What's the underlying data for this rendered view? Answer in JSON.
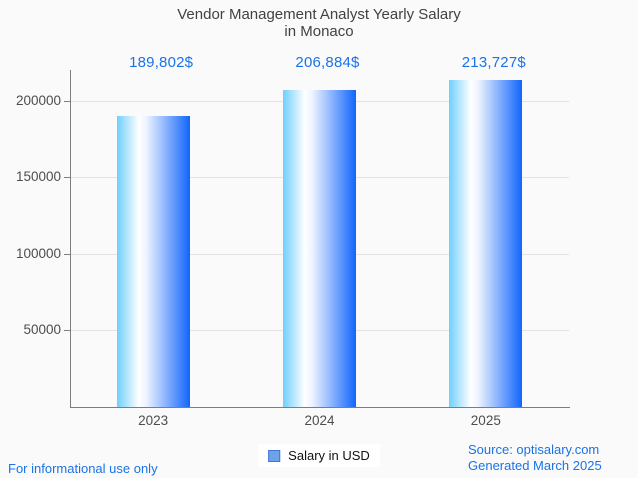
{
  "title": {
    "line1": "Vendor Management Analyst Yearly Salary",
    "line2": "in Monaco"
  },
  "legend": {
    "label": "Salary in USD"
  },
  "footer": {
    "left": "For informational use only",
    "source": "Source: optisalary.com",
    "generated": "Generated March 2025"
  },
  "colors": {
    "accent_blue": "#1a73e8",
    "title_text": "#424242",
    "axis_text": "#4d4d4d",
    "axis_line": "#7d7d7d",
    "gridline": "#e3e3e3",
    "background": "#fafafa",
    "bar_gradient_left": "#70cffe",
    "bar_gradient_right": "#1165fb",
    "legend_marker_fill": "#6fa3e8",
    "legend_marker_border": "#3c78d8"
  },
  "chart_data": {
    "type": "bar",
    "title": "Vendor Management Analyst Yearly Salary in Monaco",
    "categories": [
      "2023",
      "2024",
      "2025"
    ],
    "values": [
      189802,
      206884,
      213727
    ],
    "value_labels": [
      "189,802$",
      "206,884$",
      "213,727$"
    ],
    "series_name": "Salary in USD",
    "xlabel": "",
    "ylabel": "",
    "ylim": [
      0,
      220000
    ],
    "yticks": [
      50000,
      100000,
      150000,
      200000
    ],
    "ytick_labels": [
      "50000",
      "100000",
      "150000",
      "200000"
    ],
    "grid": "horizontal",
    "legend_position": "bottom-center"
  }
}
